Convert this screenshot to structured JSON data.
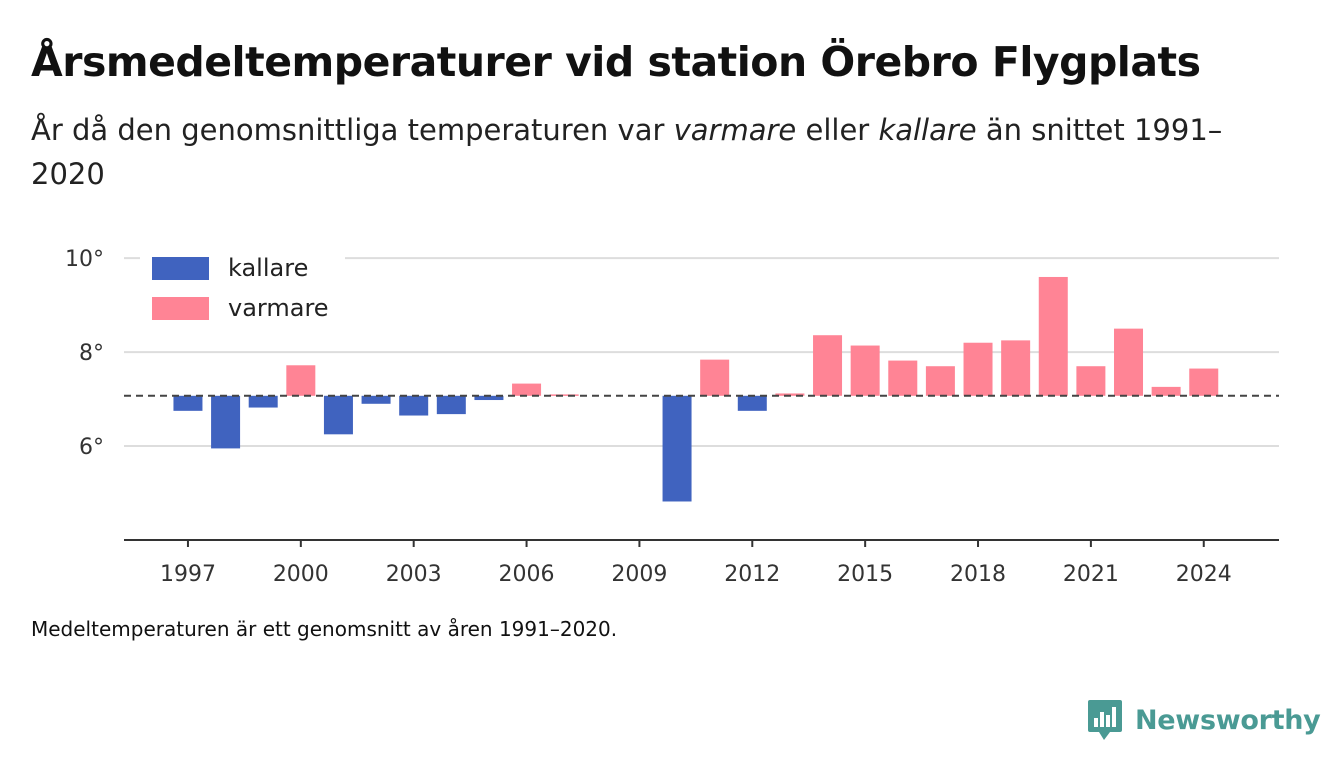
{
  "title": "Årsmedeltemperaturer vid station Örebro Flygplats",
  "subtitle": {
    "part1": "År då den genomsnittliga temperaturen var ",
    "warmer_word": "varmare",
    "part2": " eller ",
    "colder_word": "kallare",
    "part3": " än snittet 1991–2020"
  },
  "footnote": "Medeltemperaturen är ett genomsnitt av åren 1991–2020.",
  "brand": {
    "name": "Newsworthy",
    "icon": "newsworthy-logo-icon",
    "color": "#4a9a94"
  },
  "colors": {
    "colder": "#4063bf",
    "warmer": "#ff8495",
    "baseline": "#444444",
    "grid": "#dddddd",
    "axis": "#333333"
  },
  "chart_data": {
    "type": "bar",
    "baseline": 7.07,
    "ylim": [
      4.0,
      10.6
    ],
    "yticks": [
      6,
      8,
      10
    ],
    "ytick_labels": [
      "6°",
      "8°",
      "10°"
    ],
    "xlim": [
      1995.3,
      2026.0
    ],
    "xticks": [
      1997,
      2000,
      2003,
      2006,
      2009,
      2012,
      2015,
      2018,
      2021,
      2024
    ],
    "xtick_labels": [
      "1997",
      "2000",
      "2003",
      "2006",
      "2009",
      "2012",
      "2015",
      "2018",
      "2021",
      "2024"
    ],
    "legend": {
      "position": "top-left",
      "entries": [
        {
          "label": "kallare",
          "color": "#4063bf"
        },
        {
          "label": "varmare",
          "color": "#ff8495"
        }
      ]
    },
    "grid": true,
    "years": [
      1997,
      1998,
      1999,
      2000,
      2001,
      2002,
      2003,
      2004,
      2005,
      2006,
      2007,
      2010,
      2011,
      2012,
      2013,
      2014,
      2015,
      2016,
      2017,
      2018,
      2019,
      2020,
      2021,
      2022,
      2023,
      2024
    ],
    "values": [
      6.75,
      5.95,
      6.82,
      7.72,
      6.25,
      6.9,
      6.65,
      6.68,
      6.98,
      7.33,
      7.1,
      4.82,
      7.84,
      6.75,
      7.12,
      8.36,
      8.14,
      7.82,
      7.7,
      8.2,
      8.25,
      9.6,
      7.7,
      8.5,
      7.26,
      7.65
    ]
  }
}
